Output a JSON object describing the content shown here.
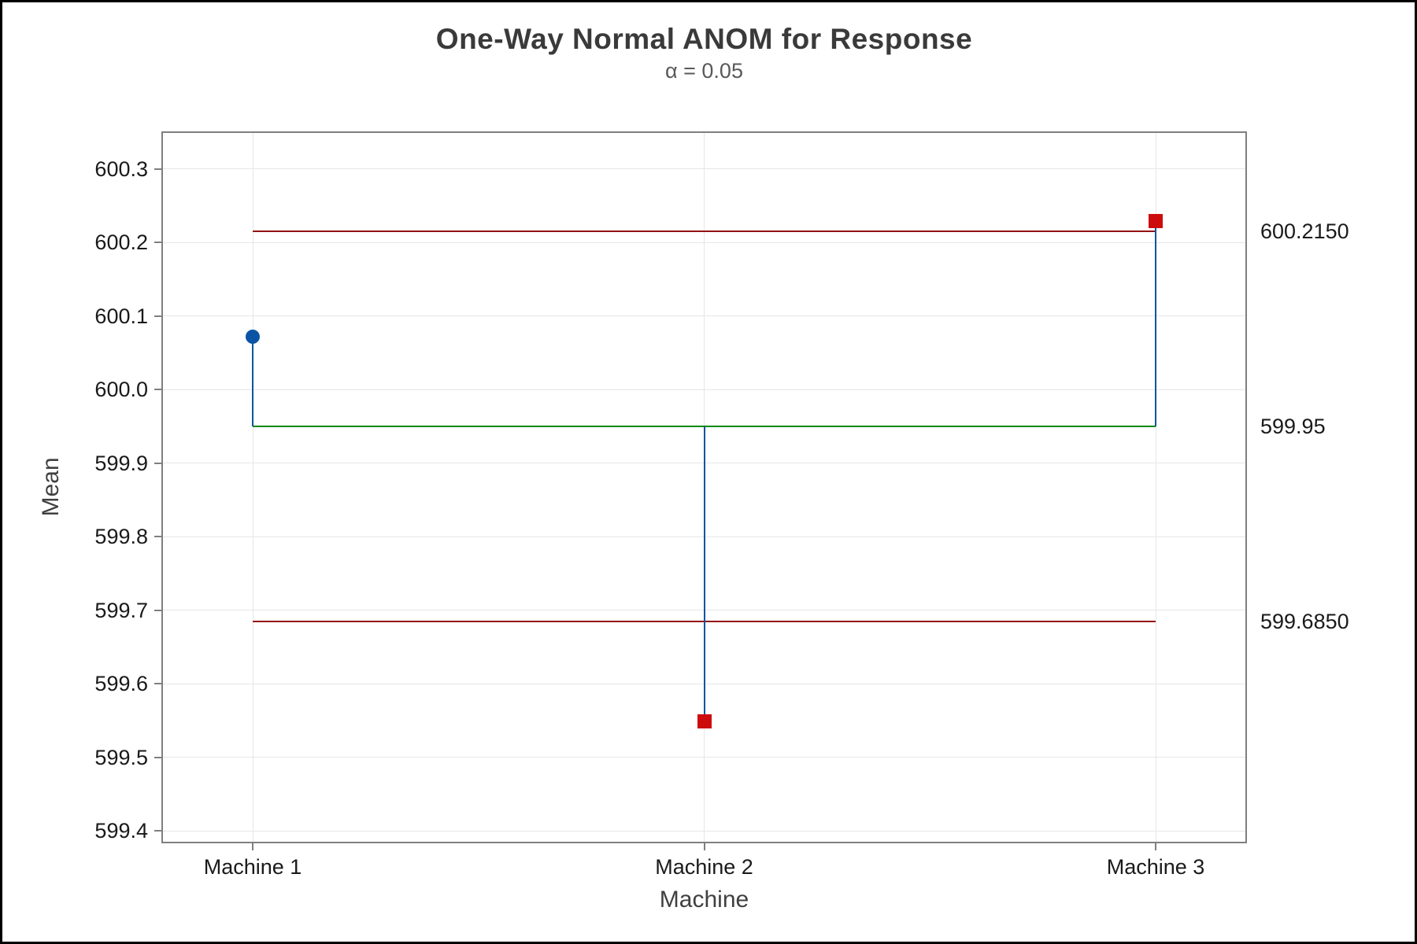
{
  "title": "One-Way Normal ANOM for Response",
  "subtitle": "α = 0.05",
  "chart_data": {
    "type": "line",
    "subtype": "anom-decision-chart",
    "title": "One-Way Normal ANOM for Response",
    "subtitle": "α = 0.05",
    "xlabel": "Machine",
    "ylabel": "Mean",
    "categories": [
      "Machine 1",
      "Machine 2",
      "Machine 3"
    ],
    "points": [
      {
        "category": "Machine 1",
        "mean": 600.072,
        "status": "in_control",
        "marker": "circle"
      },
      {
        "category": "Machine 2",
        "mean": 599.549,
        "status": "below_limit",
        "marker": "square"
      },
      {
        "category": "Machine 3",
        "mean": 600.229,
        "status": "above_limit",
        "marker": "square"
      }
    ],
    "upper_decision_limit": {
      "value": 600.215,
      "label": "600.2150"
    },
    "center_line": {
      "value": 599.95,
      "label": "599.95"
    },
    "lower_decision_limit": {
      "value": 599.685,
      "label": "599.6850"
    },
    "y_ticks": [
      600.3,
      600.2,
      600.1,
      600.0,
      599.9,
      599.8,
      599.7,
      599.6,
      599.5,
      599.4
    ],
    "y_tick_labels": [
      "600.3",
      "600.2",
      "600.1",
      "600.0",
      "599.9",
      "599.8",
      "599.7",
      "599.6",
      "599.5",
      "599.4"
    ],
    "ylim": [
      599.384,
      600.35
    ],
    "grid": true,
    "legend": "none",
    "colors": {
      "decision_limit_line": "#931111",
      "center_line": "#008a00",
      "connector_line": "#0a53a0",
      "in_control_point": "#0b54a5",
      "out_of_control_point": "#cd0d0d",
      "gridline": "#e6e6e6",
      "axis_border": "#7f7f7f",
      "tick": "#7f7f7f",
      "title_text": "#3a3a3a",
      "subtitle_text": "#595959",
      "axis_title_text": "#404040",
      "tick_label_text": "#1a1a1a"
    }
  }
}
